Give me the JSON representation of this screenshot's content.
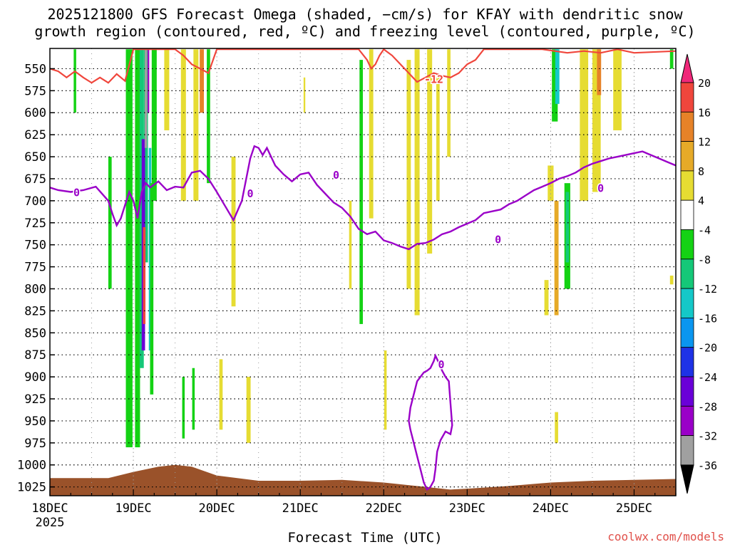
{
  "chart_data": {
    "type": "heatmap",
    "title_line1": "2025121800 GFS Forecast Omega (shaded, −cm/s) for KFAY with dendritic snow",
    "title_line2": "growth region (contoured, red, ºC) and freezing level (contoured, purple, ºC)",
    "xlabel": "Forecast Time (UTC)",
    "credit": "coolwx.com/models",
    "x_ticks": [
      "18DEC",
      "19DEC",
      "20DEC",
      "21DEC",
      "22DEC",
      "23DEC",
      "24DEC",
      "25DEC"
    ],
    "x_tick_year": "2025",
    "xlim": [
      0,
      7.5
    ],
    "y_ticks": [
      550,
      575,
      600,
      625,
      650,
      675,
      700,
      725,
      750,
      775,
      800,
      825,
      850,
      875,
      900,
      925,
      950,
      975,
      1000,
      1025
    ],
    "ylim": [
      527,
      1035
    ],
    "grid": true,
    "colorbar": {
      "levels": [
        -36,
        -32,
        -28,
        -24,
        -20,
        -16,
        -12,
        -8,
        -4,
        4,
        8,
        12,
        16,
        20
      ],
      "colors": [
        "#000000",
        "#a0a0a0",
        "#9a00c8",
        "#6a00d8",
        "#1e32e6",
        "#0a96f0",
        "#14c8c8",
        "#14c878",
        "#14d214",
        "#ffffff",
        "#e6dc32",
        "#e6aa28",
        "#e68228",
        "#f0463c",
        "#f0287a"
      ]
    },
    "contour_labels": [
      {
        "text": "-12",
        "series": "dendritic",
        "x": 4.6,
        "y": 562
      },
      {
        "text": "0",
        "series": "freezing",
        "x": 0.32,
        "y": 691
      },
      {
        "text": "0",
        "series": "freezing",
        "x": 2.4,
        "y": 692
      },
      {
        "text": "0",
        "series": "freezing",
        "x": 3.43,
        "y": 671
      },
      {
        "text": "0",
        "series": "freezing",
        "x": 5.37,
        "y": 744
      },
      {
        "text": "0",
        "series": "freezing",
        "x": 6.6,
        "y": 686
      },
      {
        "text": "0",
        "series": "freezing",
        "x": 4.69,
        "y": 886
      }
    ],
    "freezing_level": {
      "x": [
        0,
        0.1,
        0.25,
        0.4,
        0.55,
        0.7,
        0.75,
        0.8,
        0.85,
        0.9,
        0.95,
        1.0,
        1.05,
        1.1,
        1.15,
        1.2,
        1.3,
        1.4,
        1.5,
        1.6,
        1.7,
        1.8,
        1.9,
        2.0,
        2.1,
        2.2,
        2.3,
        2.4,
        2.45,
        2.5,
        2.55,
        2.6,
        2.7,
        2.8,
        2.9,
        3.0,
        3.1,
        3.2,
        3.3,
        3.4,
        3.5,
        3.6,
        3.7,
        3.8,
        3.9,
        4.0,
        4.1,
        4.2,
        4.3,
        4.4,
        4.5,
        4.6,
        4.7,
        4.8,
        4.9,
        5.0,
        5.1,
        5.2,
        5.3,
        5.4,
        5.5,
        5.6,
        5.7,
        5.8,
        5.9,
        6.0,
        6.1,
        6.2,
        6.3,
        6.4,
        6.5,
        6.6,
        6.7,
        6.8,
        6.9,
        7.0,
        7.1,
        7.2,
        7.3,
        7.4,
        7.5
      ],
      "y": [
        685,
        688,
        690,
        688,
        684,
        700,
        715,
        728,
        720,
        705,
        690,
        700,
        720,
        690,
        680,
        685,
        678,
        688,
        684,
        685,
        668,
        666,
        675,
        690,
        706,
        722,
        700,
        652,
        638,
        640,
        648,
        640,
        660,
        670,
        678,
        670,
        668,
        682,
        692,
        702,
        708,
        718,
        732,
        738,
        735,
        745,
        748,
        752,
        755,
        749,
        748,
        744,
        738,
        735,
        730,
        726,
        722,
        714,
        712,
        710,
        704,
        700,
        694,
        688,
        684,
        680,
        675,
        672,
        668,
        662,
        658,
        655,
        652,
        650,
        648,
        646,
        644,
        648,
        652,
        656,
        660
      ]
    },
    "freezing_loop": {
      "x": [
        4.62,
        4.66,
        4.7,
        4.74,
        4.78,
        4.8,
        4.82,
        4.8,
        4.74,
        4.68,
        4.64,
        4.62,
        4.6,
        4.56,
        4.52,
        4.48,
        4.44,
        4.4,
        4.36,
        4.32,
        4.3,
        4.32,
        4.36,
        4.4,
        4.44,
        4.48,
        4.52,
        4.56,
        4.6,
        4.62
      ],
      "y": [
        876,
        884,
        893,
        900,
        905,
        930,
        955,
        965,
        962,
        972,
        985,
        1005,
        1018,
        1025,
        1028,
        1020,
        1005,
        990,
        975,
        960,
        950,
        935,
        920,
        905,
        900,
        895,
        893,
        890,
        882,
        876
      ]
    },
    "dendritic_region": {
      "x": [
        0,
        0.1,
        0.2,
        0.3,
        0.4,
        0.5,
        0.6,
        0.7,
        0.8,
        0.9,
        1.0,
        1.5,
        1.6,
        1.7,
        1.8,
        1.9,
        2.0,
        3.7,
        3.8,
        3.85,
        3.9,
        3.95,
        4.0,
        4.1,
        4.2,
        4.3,
        4.4,
        4.5,
        4.6,
        4.7,
        4.8,
        4.9,
        5.0,
        5.1,
        5.2,
        5.5,
        5.9,
        6.2,
        6.4,
        6.6,
        6.8,
        7.0,
        7.5
      ],
      "y": [
        550,
        553,
        560,
        553,
        560,
        566,
        560,
        566,
        556,
        564,
        528,
        528,
        535,
        545,
        550,
        555,
        528,
        528,
        540,
        550,
        545,
        535,
        528,
        535,
        545,
        555,
        565,
        560,
        555,
        558,
        560,
        555,
        545,
        540,
        528,
        528,
        528,
        532,
        530,
        532,
        528,
        532,
        530
      ]
    },
    "omega_patches": [
      {
        "x": 0.95,
        "y1": 528,
        "y2": 980,
        "w": 0.08,
        "omega": -6
      },
      {
        "x": 1.05,
        "y1": 528,
        "y2": 980,
        "w": 0.06,
        "omega": -8
      },
      {
        "x": 1.1,
        "y1": 528,
        "y2": 890,
        "w": 0.05,
        "omega": -12
      },
      {
        "x": 1.15,
        "y1": 528,
        "y2": 770,
        "w": 0.05,
        "omega": -12
      },
      {
        "x": 1.12,
        "y1": 630,
        "y2": 870,
        "w": 0.04,
        "omega": -26
      },
      {
        "x": 1.15,
        "y1": 528,
        "y2": 640,
        "w": 0.03,
        "omega": -36
      },
      {
        "x": 1.18,
        "y1": 528,
        "y2": 600,
        "w": 0.02,
        "omega": -32
      },
      {
        "x": 1.2,
        "y1": 640,
        "y2": 870,
        "w": 0.03,
        "omega": -16
      },
      {
        "x": 1.13,
        "y1": 730,
        "y2": 840,
        "w": 0.03,
        "omega": 18
      },
      {
        "x": 1.22,
        "y1": 680,
        "y2": 920,
        "w": 0.04,
        "omega": -6
      },
      {
        "x": 1.25,
        "y1": 528,
        "y2": 700,
        "w": 0.06,
        "omega": -6
      },
      {
        "x": 0.72,
        "y1": 650,
        "y2": 800,
        "w": 0.04,
        "omega": -6
      },
      {
        "x": 0.3,
        "y1": 528,
        "y2": 600,
        "w": 0.03,
        "omega": -6
      },
      {
        "x": 1.4,
        "y1": 528,
        "y2": 620,
        "w": 0.06,
        "omega": 6
      },
      {
        "x": 1.6,
        "y1": 528,
        "y2": 700,
        "w": 0.06,
        "omega": 6
      },
      {
        "x": 1.75,
        "y1": 528,
        "y2": 700,
        "w": 0.06,
        "omega": 6
      },
      {
        "x": 1.82,
        "y1": 528,
        "y2": 600,
        "w": 0.05,
        "omega": 12
      },
      {
        "x": 1.9,
        "y1": 528,
        "y2": 680,
        "w": 0.04,
        "omega": -6
      },
      {
        "x": 2.2,
        "y1": 650,
        "y2": 820,
        "w": 0.05,
        "omega": 6
      },
      {
        "x": 1.72,
        "y1": 890,
        "y2": 960,
        "w": 0.03,
        "omega": -6
      },
      {
        "x": 1.6,
        "y1": 900,
        "y2": 970,
        "w": 0.03,
        "omega": -6
      },
      {
        "x": 2.38,
        "y1": 900,
        "y2": 975,
        "w": 0.05,
        "omega": 6
      },
      {
        "x": 3.05,
        "y1": 560,
        "y2": 600,
        "w": 0.02,
        "omega": 6
      },
      {
        "x": 3.73,
        "y1": 540,
        "y2": 840,
        "w": 0.04,
        "omega": -6
      },
      {
        "x": 3.6,
        "y1": 700,
        "y2": 800,
        "w": 0.03,
        "omega": 6
      },
      {
        "x": 3.85,
        "y1": 528,
        "y2": 720,
        "w": 0.05,
        "omega": 6
      },
      {
        "x": 4.3,
        "y1": 540,
        "y2": 800,
        "w": 0.05,
        "omega": 6
      },
      {
        "x": 4.4,
        "y1": 528,
        "y2": 830,
        "w": 0.06,
        "omega": 6
      },
      {
        "x": 4.55,
        "y1": 528,
        "y2": 760,
        "w": 0.06,
        "omega": 6
      },
      {
        "x": 4.65,
        "y1": 560,
        "y2": 700,
        "w": 0.04,
        "omega": 6
      },
      {
        "x": 4.78,
        "y1": 528,
        "y2": 650,
        "w": 0.04,
        "omega": 6
      },
      {
        "x": 2.05,
        "y1": 880,
        "y2": 960,
        "w": 0.04,
        "omega": 6
      },
      {
        "x": 4.02,
        "y1": 870,
        "y2": 960,
        "w": 0.03,
        "omega": 6
      },
      {
        "x": 5.95,
        "y1": 790,
        "y2": 830,
        "w": 0.05,
        "omega": 6
      },
      {
        "x": 6.05,
        "y1": 528,
        "y2": 610,
        "w": 0.07,
        "omega": -6
      },
      {
        "x": 6.08,
        "y1": 528,
        "y2": 590,
        "w": 0.05,
        "omega": -16
      },
      {
        "x": 6.2,
        "y1": 680,
        "y2": 800,
        "w": 0.07,
        "omega": -6
      },
      {
        "x": 6.2,
        "y1": 690,
        "y2": 770,
        "w": 0.04,
        "omega": -12
      },
      {
        "x": 6.0,
        "y1": 660,
        "y2": 700,
        "w": 0.07,
        "omega": 6
      },
      {
        "x": 6.07,
        "y1": 700,
        "y2": 830,
        "w": 0.05,
        "omega": 8
      },
      {
        "x": 6.07,
        "y1": 940,
        "y2": 975,
        "w": 0.04,
        "omega": 6
      },
      {
        "x": 6.4,
        "y1": 528,
        "y2": 700,
        "w": 0.1,
        "omega": 6
      },
      {
        "x": 6.55,
        "y1": 528,
        "y2": 690,
        "w": 0.1,
        "omega": 6
      },
      {
        "x": 6.58,
        "y1": 528,
        "y2": 580,
        "w": 0.05,
        "omega": 12
      },
      {
        "x": 6.8,
        "y1": 528,
        "y2": 620,
        "w": 0.1,
        "omega": 6
      },
      {
        "x": 7.45,
        "y1": 528,
        "y2": 550,
        "w": 0.04,
        "omega": -6
      },
      {
        "x": 7.45,
        "y1": 785,
        "y2": 795,
        "w": 0.04,
        "omega": 6
      }
    ],
    "terrain_surface": {
      "x": [
        0,
        0.7,
        1.0,
        1.3,
        1.5,
        1.7,
        2.0,
        2.5,
        3.0,
        3.5,
        4.0,
        4.5,
        4.8,
        5.0,
        5.5,
        6.0,
        6.5,
        7.0,
        7.5
      ],
      "y": [
        1015,
        1015,
        1008,
        1002,
        1000,
        1002,
        1012,
        1018,
        1018,
        1017,
        1020,
        1025,
        1028,
        1027,
        1024,
        1020,
        1018,
        1017,
        1016
      ]
    }
  }
}
